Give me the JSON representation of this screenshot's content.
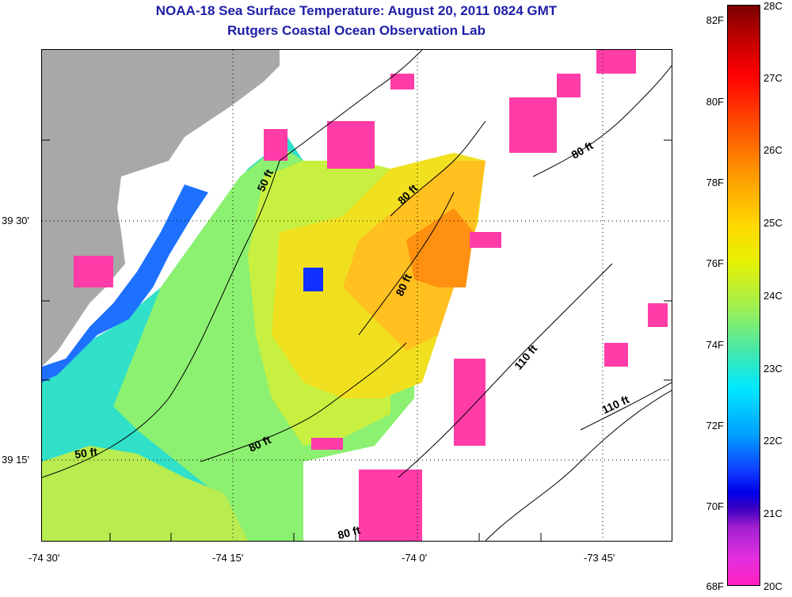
{
  "title": {
    "line1": "NOAA-18 Sea Surface Temperature:  August 20, 2011 0824 GMT",
    "line2": "Rutgers Coastal Ocean Observation Lab"
  },
  "map": {
    "latitude_labels": [
      "39 30'",
      "39 15'"
    ],
    "longitude_labels": [
      "-74 30'",
      "-74 15'",
      "-74 0'",
      "-73 45'"
    ],
    "contour_labels": [
      "50 ft",
      "80 ft",
      "80 ft",
      "80 ft",
      "110 ft",
      "110 ft",
      "50 ft",
      "80 ft",
      "80 ft"
    ],
    "colors": {
      "land": "#a8a8a8",
      "cloud_flag": "#ff3ca8",
      "no_data": "#ffffff"
    }
  },
  "colorbar": {
    "fahrenheit_labels": [
      "82F",
      "80F",
      "78F",
      "76F",
      "74F",
      "72F",
      "70F",
      "68F"
    ],
    "celsius_labels": [
      "28C",
      "27C",
      "26C",
      "25C",
      "24C",
      "23C",
      "22C",
      "21C",
      "20C"
    ]
  }
}
